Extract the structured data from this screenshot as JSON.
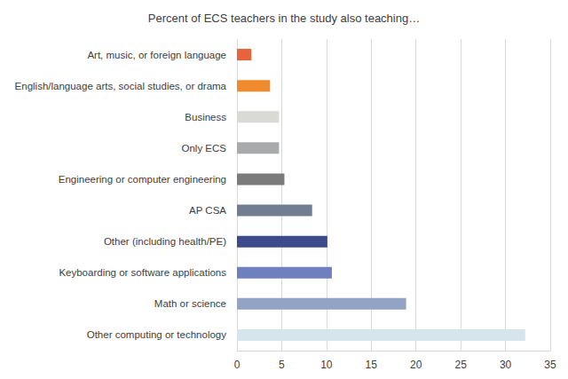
{
  "chart_data": {
    "type": "bar",
    "orientation": "horizontal",
    "title": "Percent of ECS teachers in the study also teaching…",
    "categories": [
      "Art, music, or foreign language",
      "English/language arts, social studies, or drama",
      "Business",
      "Only ECS",
      "Engineering or computer engineering",
      "AP CSA",
      "Other (including health/PE)",
      "Keyboarding or software applications",
      "Math or science",
      "Other computing or technology"
    ],
    "values": [
      1.6,
      3.7,
      4.7,
      4.7,
      5.3,
      8.4,
      10.1,
      10.6,
      18.9,
      32.2
    ],
    "colors": [
      "#e8623b",
      "#f08a2c",
      "#d9d9d5",
      "#a9aaac",
      "#7b7b7b",
      "#717e91",
      "#3d4a8c",
      "#6f80be",
      "#91a4c5",
      "#d5e5eb"
    ],
    "xlim": [
      0,
      35
    ],
    "xticks": [
      0,
      5,
      10,
      15,
      20,
      25,
      30,
      35
    ],
    "grid": true
  }
}
